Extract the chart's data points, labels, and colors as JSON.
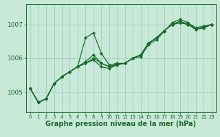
{
  "xlabel": "Graphe pression niveau de la mer (hPa)",
  "background_color": "#c8e8d8",
  "grid_color": "#99ccbb",
  "line_color": "#1a6b2a",
  "ylim": [
    1004.4,
    1007.6
  ],
  "xlim": [
    -0.5,
    23.5
  ],
  "yticks": [
    1005,
    1006,
    1007
  ],
  "xticks": [
    0,
    1,
    2,
    3,
    4,
    5,
    6,
    7,
    8,
    9,
    10,
    11,
    12,
    13,
    14,
    15,
    16,
    17,
    18,
    19,
    20,
    21,
    22,
    23
  ],
  "series": [
    {
      "x": [
        0,
        1,
        2,
        3,
        4,
        5,
        6,
        7,
        8,
        9,
        10,
        11,
        12,
        13,
        14,
        15,
        16,
        17,
        18,
        19,
        20,
        21,
        22,
        23
      ],
      "y": [
        1005.1,
        1004.7,
        1004.8,
        1005.25,
        1005.45,
        1005.6,
        1005.75,
        1006.6,
        1006.75,
        1006.15,
        1005.8,
        1005.85,
        1005.85,
        1006.0,
        1006.05,
        1006.4,
        1006.55,
        1006.8,
        1007.05,
        1007.15,
        1007.05,
        1006.9,
        1006.95,
        1007.0
      ]
    },
    {
      "x": [
        0,
        1,
        2,
        3,
        4,
        5,
        6,
        7,
        8,
        9,
        10,
        11,
        12,
        13,
        14,
        15,
        16,
        17,
        18,
        19,
        20,
        21,
        22,
        23
      ],
      "y": [
        1005.1,
        1004.7,
        1004.8,
        1005.25,
        1005.45,
        1005.6,
        1005.75,
        1005.85,
        1005.95,
        1005.75,
        1005.7,
        1005.8,
        1005.85,
        1006.0,
        1006.1,
        1006.45,
        1006.6,
        1006.82,
        1007.0,
        1007.05,
        1007.0,
        1006.85,
        1006.9,
        1007.0
      ]
    },
    {
      "x": [
        0,
        1,
        2,
        3,
        4,
        5,
        6,
        7,
        8,
        9,
        10,
        11,
        12,
        13,
        14,
        15,
        16,
        17,
        18,
        19,
        20,
        21,
        22,
        23
      ],
      "y": [
        1005.1,
        1004.7,
        1004.8,
        1005.25,
        1005.45,
        1005.6,
        1005.75,
        1005.85,
        1006.0,
        1005.85,
        1005.75,
        1005.82,
        1005.85,
        1006.0,
        1006.1,
        1006.45,
        1006.6,
        1006.82,
        1007.0,
        1007.05,
        1007.0,
        1006.85,
        1006.9,
        1007.0
      ]
    },
    {
      "x": [
        0,
        1,
        2,
        3,
        4,
        5,
        6,
        7,
        8,
        9,
        10,
        11,
        12,
        13,
        14,
        15,
        16,
        17,
        18,
        19,
        20,
        21,
        22,
        23
      ],
      "y": [
        1005.1,
        1004.7,
        1004.8,
        1005.25,
        1005.45,
        1005.6,
        1005.75,
        1005.9,
        1006.1,
        1005.85,
        1005.75,
        1005.82,
        1005.85,
        1006.0,
        1006.1,
        1006.45,
        1006.6,
        1006.82,
        1007.0,
        1007.1,
        1007.0,
        1006.9,
        1006.92,
        1007.0
      ]
    }
  ],
  "marker": "D",
  "markersize": 2.2,
  "linewidth": 0.9,
  "xlabel_fontsize": 7,
  "xlabel_bold": true,
  "ytick_fontsize": 6.5,
  "xtick_fontsize": 5.0
}
